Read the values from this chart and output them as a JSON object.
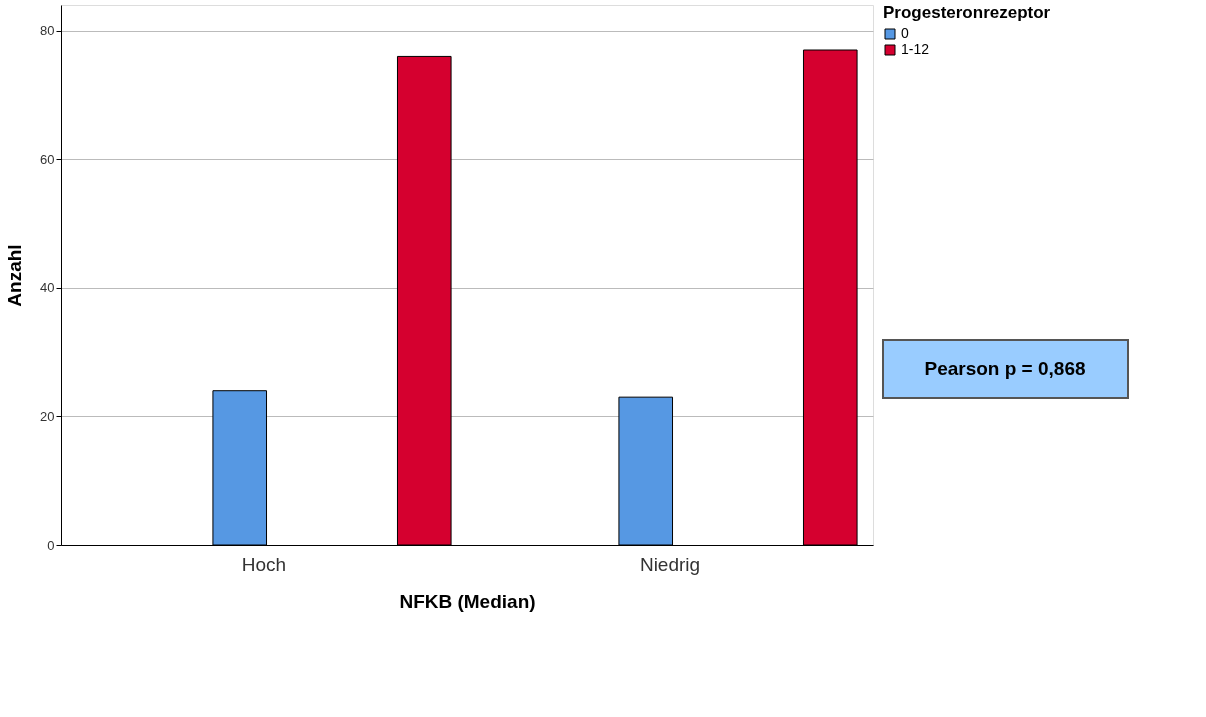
{
  "chart_data": {
    "type": "bar",
    "xlabel": "NFKB (Median)",
    "ylabel": "Anzahl",
    "legend_title": "Progesteronrezeptor",
    "categories": [
      "Hoch",
      "Niedrig"
    ],
    "series": [
      {
        "name": "0",
        "color": "#5698e3",
        "values": [
          24,
          23
        ]
      },
      {
        "name": "1-12",
        "color": "#d5002f",
        "values": [
          76,
          77
        ]
      }
    ],
    "ylim": [
      0,
      84
    ],
    "yticks": [
      0,
      20,
      40,
      60,
      80
    ],
    "grid": "y",
    "legend": "top right",
    "annotations": [
      "Pearson p = 0,868"
    ]
  }
}
